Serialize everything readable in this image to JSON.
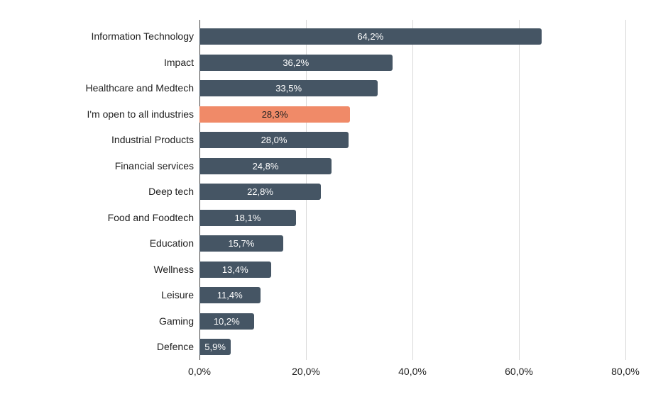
{
  "chart_data": {
    "type": "bar",
    "orientation": "horizontal",
    "title": "",
    "xlabel": "",
    "ylabel": "",
    "categories": [
      "Information Technology",
      "Impact",
      "Healthcare and Medtech",
      "I'm open to all industries",
      "Industrial Products",
      "Financial services",
      "Deep tech",
      "Food and Foodtech",
      "Education",
      "Wellness",
      "Leisure",
      "Gaming",
      "Defence"
    ],
    "values": [
      64.2,
      36.2,
      33.5,
      28.3,
      28.0,
      24.8,
      22.8,
      18.1,
      15.7,
      13.4,
      11.4,
      10.2,
      5.9
    ],
    "value_labels": [
      "64,2%",
      "36,2%",
      "33,5%",
      "28,3%",
      "28,0%",
      "24,8%",
      "22,8%",
      "18,1%",
      "15,7%",
      "13,4%",
      "11,4%",
      "10,2%",
      "5,9%"
    ],
    "highlight_index": 3,
    "xlim": [
      0,
      80
    ],
    "x_ticks": [
      {
        "value": 0,
        "label": "0,0%"
      },
      {
        "value": 20,
        "label": "20,0%"
      },
      {
        "value": 40,
        "label": "40,0%"
      },
      {
        "value": 60,
        "label": "60,0%"
      },
      {
        "value": 80,
        "label": "80,0%"
      }
    ],
    "grid": true,
    "legend_position": "none",
    "colors": {
      "bar": "#455564",
      "highlight_bar": "#F08A68",
      "bar_label": "#FFFFFF",
      "highlight_bar_label": "#212121",
      "gridline": "#D9D9D9",
      "axis_line": "#424242",
      "category_label": "#212121",
      "tick_label": "#212121",
      "background": "#FFFFFF"
    }
  }
}
